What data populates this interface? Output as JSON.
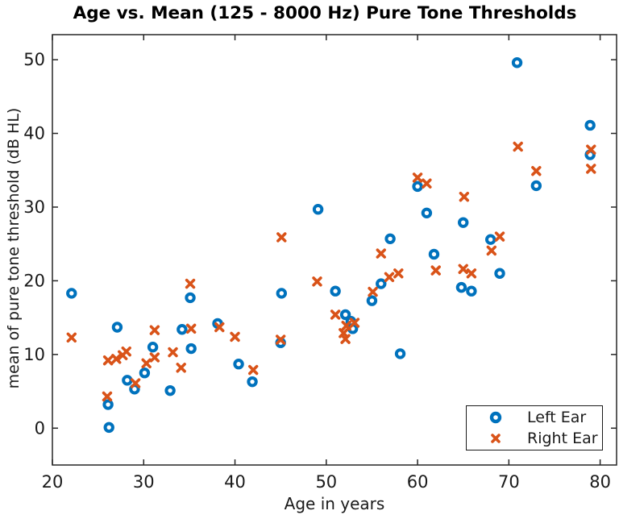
{
  "figure": {
    "background": "#ffffff",
    "axes_color": "#262626",
    "text_color": "#1a1a1a"
  },
  "chart_data": {
    "type": "scatter",
    "title": "Age vs. Mean (125 - 8000 Hz) Pure Tone Thresholds",
    "xlabel": "Age in years",
    "ylabel": "mean of pure tone threshold (dB HL)",
    "xlim": [
      20,
      81.8
    ],
    "ylim": [
      -5,
      53.4
    ],
    "x_ticks": [
      20,
      30,
      40,
      50,
      60,
      70,
      80
    ],
    "y_ticks": [
      0,
      10,
      20,
      30,
      40,
      50
    ],
    "grid": false,
    "legend_position": "lower-right",
    "series": [
      {
        "name": "Left Ear",
        "marker": "circle",
        "color": "#0072BD",
        "points": [
          [
            22.1,
            18.3
          ],
          [
            26.2,
            0.1
          ],
          [
            26.1,
            3.2
          ],
          [
            27.1,
            13.7
          ],
          [
            28.2,
            6.5
          ],
          [
            29.0,
            5.3
          ],
          [
            30.1,
            7.5
          ],
          [
            31.0,
            11.0
          ],
          [
            32.9,
            5.1
          ],
          [
            34.2,
            13.4
          ],
          [
            35.2,
            10.8
          ],
          [
            35.1,
            17.7
          ],
          [
            38.1,
            14.2
          ],
          [
            40.4,
            8.7
          ],
          [
            41.9,
            6.3
          ],
          [
            45.0,
            11.6
          ],
          [
            45.1,
            18.3
          ],
          [
            49.1,
            29.7
          ],
          [
            51.0,
            18.6
          ],
          [
            52.1,
            15.4
          ],
          [
            52.7,
            14.5
          ],
          [
            52.9,
            13.5
          ],
          [
            55.0,
            17.3
          ],
          [
            56.0,
            19.6
          ],
          [
            57.0,
            25.7
          ],
          [
            58.1,
            10.1
          ],
          [
            60.0,
            32.8
          ],
          [
            61.0,
            29.2
          ],
          [
            61.8,
            23.6
          ],
          [
            64.8,
            19.1
          ],
          [
            65.0,
            27.9
          ],
          [
            65.9,
            18.6
          ],
          [
            68.0,
            25.6
          ],
          [
            69.0,
            21.0
          ],
          [
            70.9,
            49.6
          ],
          [
            73.0,
            32.9
          ],
          [
            78.9,
            41.1
          ],
          [
            78.9,
            37.1
          ]
        ]
      },
      {
        "name": "Right Ear",
        "marker": "x",
        "color": "#D95319",
        "points": [
          [
            22.1,
            12.3
          ],
          [
            26.0,
            4.3
          ],
          [
            26.1,
            9.2
          ],
          [
            27.0,
            9.4
          ],
          [
            27.7,
            9.9
          ],
          [
            28.1,
            10.4
          ],
          [
            29.1,
            6.1
          ],
          [
            30.3,
            8.8
          ],
          [
            31.2,
            9.6
          ],
          [
            31.2,
            13.3
          ],
          [
            33.2,
            10.3
          ],
          [
            34.1,
            8.2
          ],
          [
            35.2,
            13.5
          ],
          [
            35.1,
            19.6
          ],
          [
            38.3,
            13.7
          ],
          [
            40.0,
            12.4
          ],
          [
            42.0,
            7.9
          ],
          [
            45.0,
            12.0
          ],
          [
            45.1,
            25.9
          ],
          [
            49.0,
            19.9
          ],
          [
            51.0,
            15.4
          ],
          [
            52.2,
            13.9
          ],
          [
            51.9,
            12.9
          ],
          [
            52.1,
            12.1
          ],
          [
            53.1,
            14.3
          ],
          [
            55.1,
            18.5
          ],
          [
            56.0,
            23.7
          ],
          [
            56.9,
            20.5
          ],
          [
            57.9,
            21.0
          ],
          [
            60.0,
            34.0
          ],
          [
            61.0,
            33.2
          ],
          [
            62.0,
            21.4
          ],
          [
            65.0,
            21.6
          ],
          [
            65.9,
            21.0
          ],
          [
            65.1,
            31.4
          ],
          [
            68.1,
            24.1
          ],
          [
            69.0,
            26.0
          ],
          [
            71.0,
            38.2
          ],
          [
            73.0,
            34.9
          ],
          [
            79.0,
            37.8
          ],
          [
            79.0,
            35.2
          ]
        ]
      }
    ]
  }
}
